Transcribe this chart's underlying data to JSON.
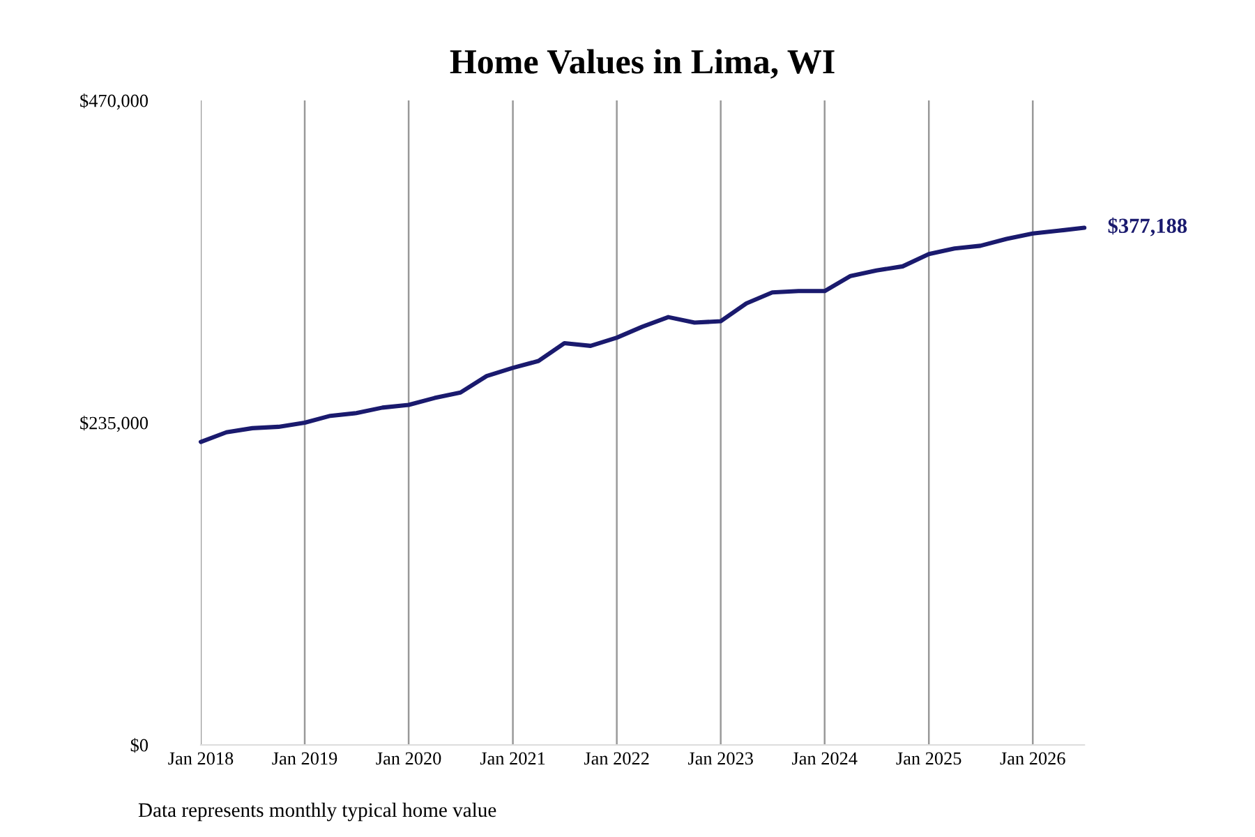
{
  "chart_data": {
    "type": "line",
    "title": "Home Values in Lima, WI",
    "x": [
      "2018-01",
      "2018-04",
      "2018-07",
      "2018-10",
      "2019-01",
      "2019-04",
      "2019-07",
      "2019-10",
      "2020-01",
      "2020-04",
      "2020-07",
      "2020-10",
      "2021-01",
      "2021-04",
      "2021-07",
      "2021-10",
      "2022-01",
      "2022-04",
      "2022-07",
      "2022-10",
      "2023-01",
      "2023-04",
      "2023-07",
      "2023-10",
      "2024-01",
      "2024-04",
      "2024-07",
      "2024-10",
      "2025-01",
      "2025-04",
      "2025-07",
      "2025-10",
      "2026-01",
      "2026-04",
      "2026-07"
    ],
    "series": [
      {
        "color": "#1a1a6e",
        "values": [
          221000,
          228000,
          231000,
          232000,
          235000,
          240000,
          242000,
          246000,
          248000,
          253000,
          257000,
          269000,
          275000,
          280000,
          293000,
          291000,
          297000,
          305000,
          312000,
          308000,
          309000,
          322000,
          330000,
          331000,
          331000,
          342000,
          346000,
          349000,
          358000,
          362000,
          364000,
          369000,
          373000,
          375000,
          377188
        ]
      }
    ],
    "xticks": [
      {
        "value": "2018-01",
        "label": "Jan 2018"
      },
      {
        "value": "2019-01",
        "label": "Jan 2019"
      },
      {
        "value": "2020-01",
        "label": "Jan 2020"
      },
      {
        "value": "2021-01",
        "label": "Jan 2021"
      },
      {
        "value": "2022-01",
        "label": "Jan 2022"
      },
      {
        "value": "2023-01",
        "label": "Jan 2023"
      },
      {
        "value": "2024-01",
        "label": "Jan 2024"
      },
      {
        "value": "2025-01",
        "label": "Jan 2025"
      },
      {
        "value": "2026-01",
        "label": "Jan 2026"
      }
    ],
    "xlim": [
      "2018-01",
      "2026-07"
    ],
    "ylim": [
      0,
      470000
    ],
    "yticks": [
      {
        "value": 0,
        "label": "$0"
      },
      {
        "value": 235000,
        "label": "$235,000"
      },
      {
        "value": 470000,
        "label": "$470,000"
      }
    ],
    "grid": "x",
    "annotations": [
      {
        "text": "$377,188",
        "x": "2026-07",
        "y": 377188
      },
      "Data represents monthly typical home value"
    ]
  }
}
